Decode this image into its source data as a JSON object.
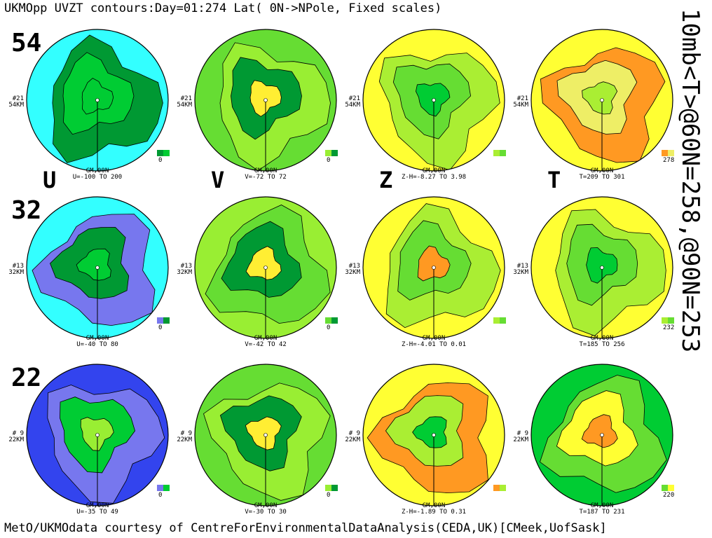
{
  "title": "UKMOpp UVZT contours:Day=01:274 Lat( 0N->NPole, Fixed scales)",
  "side_label": "10mb<T>@60N=258,@90N=253",
  "footer": "MetO/UKMOdata courtesy of CentreForEnvironmentalDataAnalysis(CEDA,UK)[CMeek,UofSask]",
  "var_labels": [
    "U",
    "V",
    "Z",
    "T"
  ],
  "rows": [
    {
      "altitude": "54",
      "level_num": "#21",
      "level_km": "54KM",
      "panels": [
        {
          "var": "U",
          "gm": "GM,00N",
          "range": "U=-100 TO 200",
          "key": "0",
          "colors": [
            "#33ffff",
            "#009933",
            "#00cc33",
            "#00cc33"
          ]
        },
        {
          "var": "V",
          "gm": "GM,00N",
          "range": "V=-72 TO  72",
          "key": "0",
          "colors": [
            "#66dd33",
            "#99ee33",
            "#009933",
            "#ffee33"
          ]
        },
        {
          "var": "Z",
          "gm": "GM,00N",
          "range": "Z-H=-8.27 TO 3.98",
          "key": "",
          "colors": [
            "#ffff33",
            "#aaee33",
            "#66dd33",
            "#00cc33"
          ]
        },
        {
          "var": "T",
          "gm": "GM,00N",
          "range": "T=209 TO 301",
          "key": "278",
          "colors": [
            "#ffff33",
            "#ff9922",
            "#eeee66",
            "#aaee33"
          ]
        }
      ]
    },
    {
      "altitude": "32",
      "level_num": "#13",
      "level_km": "32KM",
      "panels": [
        {
          "var": "U",
          "gm": "GM,00N",
          "range": "U=-40 TO  80",
          "key": "0",
          "colors": [
            "#33ffff",
            "#7777ee",
            "#009933",
            "#00cc33"
          ]
        },
        {
          "var": "V",
          "gm": "GM,00N",
          "range": "V=-42 TO  42",
          "key": "0",
          "colors": [
            "#99ee33",
            "#66dd33",
            "#009933",
            "#ffee33"
          ]
        },
        {
          "var": "Z",
          "gm": "GM,00N",
          "range": "Z-H=-4.01 TO 0.01",
          "key": "",
          "colors": [
            "#ffff33",
            "#aaee33",
            "#66dd33",
            "#ff9922"
          ]
        },
        {
          "var": "T",
          "gm": "GM,00N",
          "range": "T=185 TO 256",
          "key": "232",
          "colors": [
            "#ffff33",
            "#aaee33",
            "#66dd33",
            "#00cc33"
          ]
        }
      ]
    },
    {
      "altitude": "22",
      "level_num": "# 9",
      "level_km": "22KM",
      "panels": [
        {
          "var": "U",
          "gm": "GM,00N",
          "range": "U=-35 TO  49",
          "key": "0",
          "colors": [
            "#3344ee",
            "#7777ee",
            "#00cc33",
            "#99ee33"
          ]
        },
        {
          "var": "V",
          "gm": "GM,00N",
          "range": "V=-30 TO  30",
          "key": "0",
          "colors": [
            "#66dd33",
            "#99ee33",
            "#009933",
            "#ffee33"
          ]
        },
        {
          "var": "Z",
          "gm": "GM,00N",
          "range": "Z-H=-1.89 TO 0.31",
          "key": "",
          "colors": [
            "#ffff33",
            "#ff9922",
            "#aaee33",
            "#00cc33"
          ]
        },
        {
          "var": "T",
          "gm": "GM,00N",
          "range": "T=187 TO 231",
          "key": "220",
          "colors": [
            "#00cc33",
            "#66dd33",
            "#ffff33",
            "#ff9922"
          ]
        }
      ]
    }
  ]
}
